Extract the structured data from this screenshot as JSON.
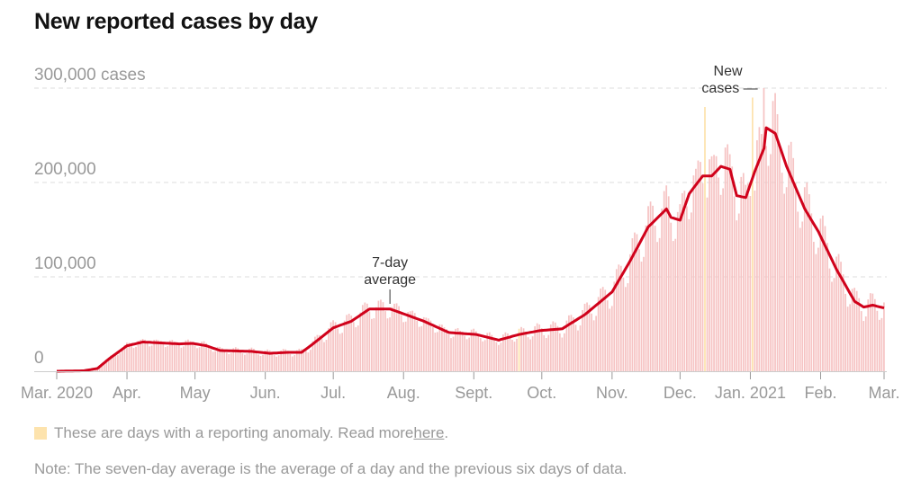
{
  "title": "New reported cases by day",
  "legend": {
    "text": "These are days with a reporting anomaly. Read more ",
    "link": "here",
    "end": "."
  },
  "note": "Note: The seven-day average is the average of a day and the previous six days of data.",
  "chart_data": {
    "type": "bar",
    "title": "New reported cases by day",
    "x_range_days_since_2020_03_01": [
      0,
      365
    ],
    "ylim": [
      0,
      300000
    ],
    "yticks": [
      {
        "value": 0,
        "label": "0"
      },
      {
        "value": 100000,
        "label": "100,000"
      },
      {
        "value": 200000,
        "label": "200,000"
      },
      {
        "value": 300000,
        "label": "300,000 cases"
      }
    ],
    "xticks": [
      {
        "day": 0,
        "label": "Mar. 2020"
      },
      {
        "day": 31,
        "label": "Apr."
      },
      {
        "day": 61,
        "label": "May"
      },
      {
        "day": 92,
        "label": "Jun."
      },
      {
        "day": 122,
        "label": "Jul."
      },
      {
        "day": 153,
        "label": "Aug."
      },
      {
        "day": 184,
        "label": "Sept."
      },
      {
        "day": 214,
        "label": "Oct."
      },
      {
        "day": 245,
        "label": "Nov."
      },
      {
        "day": 275,
        "label": "Dec."
      },
      {
        "day": 306,
        "label": "Jan. 2021"
      },
      {
        "day": 337,
        "label": "Feb."
      },
      {
        "day": 365,
        "label": "Mar."
      }
    ],
    "seven_day_average": [
      [
        0,
        0
      ],
      [
        12,
        500
      ],
      [
        18,
        3000
      ],
      [
        23,
        13000
      ],
      [
        31,
        27000
      ],
      [
        38,
        31000
      ],
      [
        46,
        30000
      ],
      [
        54,
        29000
      ],
      [
        60,
        29500
      ],
      [
        66,
        27000
      ],
      [
        72,
        22000
      ],
      [
        86,
        21000
      ],
      [
        94,
        19000
      ],
      [
        102,
        20000
      ],
      [
        108,
        20000
      ],
      [
        112,
        27000
      ],
      [
        122,
        46000
      ],
      [
        130,
        53000
      ],
      [
        138,
        66000
      ],
      [
        147,
        66000
      ],
      [
        154,
        60000
      ],
      [
        162,
        53000
      ],
      [
        173,
        41000
      ],
      [
        185,
        39000
      ],
      [
        195,
        33000
      ],
      [
        204,
        39000
      ],
      [
        213,
        43000
      ],
      [
        223,
        45000
      ],
      [
        233,
        60000
      ],
      [
        245,
        84000
      ],
      [
        253,
        117000
      ],
      [
        261,
        153000
      ],
      [
        269,
        172000
      ],
      [
        271,
        163000
      ],
      [
        275,
        160000
      ],
      [
        279,
        188000
      ],
      [
        285,
        207000
      ],
      [
        289,
        207000
      ],
      [
        293,
        217000
      ],
      [
        297,
        214000
      ],
      [
        300,
        186000
      ],
      [
        304,
        184000
      ],
      [
        308,
        212000
      ],
      [
        312,
        236000
      ],
      [
        313,
        258000
      ],
      [
        317,
        252000
      ],
      [
        322,
        217000
      ],
      [
        330,
        172000
      ],
      [
        336,
        148000
      ],
      [
        344,
        108000
      ],
      [
        352,
        74000
      ],
      [
        356,
        68000
      ],
      [
        360,
        70000
      ],
      [
        365,
        67000
      ]
    ],
    "daily_peak": {
      "day": 312,
      "value": 300000
    },
    "anomaly_days": [
      {
        "day": 286,
        "value": 280000
      },
      {
        "day": 307,
        "value": 290000
      },
      {
        "day": 204,
        "value": 45000
      }
    ],
    "annotations": [
      {
        "label_lines": [
          "7-day",
          "average"
        ],
        "day": 147
      },
      {
        "label_lines": [
          "New",
          "cases —"
        ],
        "day": 312
      }
    ],
    "colors": {
      "bars": "#f6c3c3",
      "anomaly": "#fde3ad",
      "average": "#d0021b",
      "grid": "#ddd"
    }
  }
}
